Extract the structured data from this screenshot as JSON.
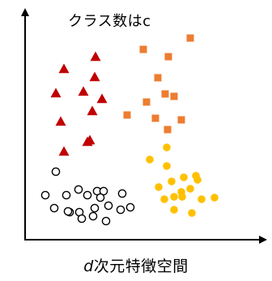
{
  "diagram": {
    "title": "クラス数はc",
    "xlabel_var": "d",
    "xlabel_text": "次元特徴空間",
    "colors": {
      "axis": "#000000",
      "triangle": "#c00000",
      "square": "#ed7d31",
      "dot": "#ffc000",
      "circle_stroke": "#000000"
    },
    "classes": [
      {
        "name": "triangle-class",
        "marker": "triangle",
        "count": 11
      },
      {
        "name": "square-class",
        "marker": "square",
        "count": 12
      },
      {
        "name": "dot-class",
        "marker": "filled-circle",
        "count": 17
      },
      {
        "name": "circle-class",
        "marker": "open-circle",
        "count": 20
      }
    ]
  }
}
